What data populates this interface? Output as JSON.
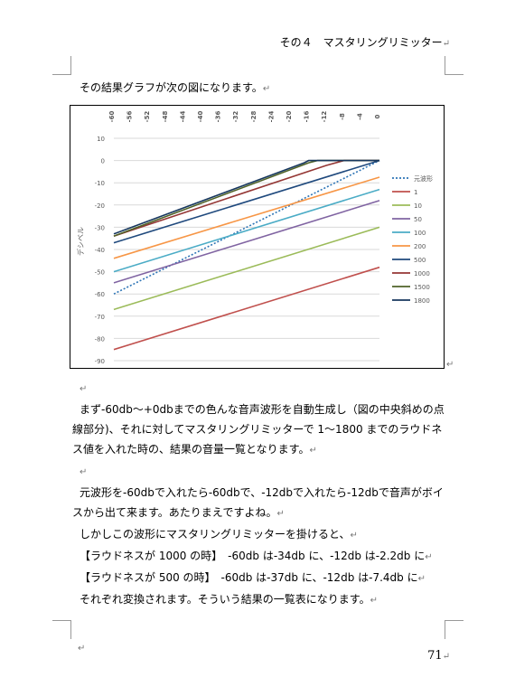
{
  "header": {
    "text": "その４　マスタリングリミッター",
    "mark": "↵"
  },
  "intro": {
    "text": "その結果グラフが次の図になります。",
    "mark": "↵"
  },
  "chart_mark": "↵",
  "chart_data": {
    "type": "line",
    "title": "",
    "ylabel": "デシベル",
    "xlabel": "",
    "x": [
      -60,
      -58,
      -56,
      -54,
      -52,
      -50,
      -48,
      -46,
      -44,
      -42,
      -40,
      -38,
      -36,
      -34,
      -32,
      -30,
      -28,
      -26,
      -24,
      -22,
      -20,
      -18,
      -16,
      -14,
      -12,
      -10,
      -8,
      -6,
      -4,
      -2,
      0
    ],
    "x_ticks": [
      "-60",
      "-56",
      "-52",
      "-48",
      "-44",
      "-40",
      "-36",
      "-32",
      "-28",
      "-24",
      "-20",
      "-16",
      "-12",
      "-8",
      "-4",
      "0"
    ],
    "xlim": [
      -60,
      0
    ],
    "y_ticks": [
      "10",
      "0",
      "-10",
      "-20",
      "-30",
      "-40",
      "-50",
      "-60",
      "-70",
      "-80",
      "-90"
    ],
    "ylim": [
      -90,
      10
    ],
    "grid": true,
    "legend_position": "right",
    "series": [
      {
        "name": "元波形",
        "color": "#2e75b6",
        "dashed": true,
        "x0": -60,
        "x1": 0,
        "y0": -60,
        "y1": 0,
        "knee_x": null
      },
      {
        "name": "1",
        "color": "#c0504d",
        "x0": -60,
        "x1": 0,
        "y0": -85,
        "y1": -48,
        "knee_x": null
      },
      {
        "name": "10",
        "color": "#9bbb59",
        "x0": -60,
        "x1": 0,
        "y0": -67,
        "y1": -30,
        "knee_x": null
      },
      {
        "name": "50",
        "color": "#8064a2",
        "x0": -60,
        "x1": 0,
        "y0": -55,
        "y1": -18,
        "knee_x": null
      },
      {
        "name": "100",
        "color": "#4bacc6",
        "x0": -60,
        "x1": 0,
        "y0": -50,
        "y1": -13,
        "knee_x": null
      },
      {
        "name": "200",
        "color": "#f79646",
        "x0": -60,
        "x1": 0,
        "y0": -44,
        "y1": -7.5,
        "knee_x": null
      },
      {
        "name": "500",
        "color": "#1f497d",
        "x0": -60,
        "x1": 0,
        "y0": -37,
        "y1": 0,
        "knee_x": null
      },
      {
        "name": "1000",
        "color": "#943634",
        "x0": -60,
        "x1": -12,
        "y0": -34,
        "y1": -2.2,
        "knee_x": -8
      },
      {
        "name": "1500",
        "color": "#4f6228",
        "x0": -60,
        "x1": -16,
        "y0": -34,
        "y1": -1,
        "knee_x": -14
      },
      {
        "name": "1800",
        "color": "#17375e",
        "x0": -60,
        "x1": -17,
        "y0": -33,
        "y1": -1,
        "knee_x": -16
      }
    ]
  },
  "body": {
    "p1_line1": "まず-60db～+0dbまでの色んな音声波形を自動生成し（図の中央斜めの点",
    "p1_line2": "線部分)、それに対してマスタリングリミッターで 1～1800 までのラウドネ",
    "p1_line3": "ス値を入れた時の、結果の音量一覧となります。",
    "blank1": "",
    "p2_line1": "元波形を-60dbで入れたら-60dbで、-12dbで入れたら-12dbで音声がボイ",
    "p2_line2": "スから出て来ます。あたりまえですよね。",
    "p3": "しかしこの波形にマスタリングリミッターを掛けると、",
    "p4": "【ラウドネスが 1000 の時】　-60db は-34db に、-12db は-2.2db に",
    "p5": "【ラウドネスが 500 の時】　-60db は-37db に、-12db は-7.4db に",
    "p6": "それぞれ変換されます。そういう結果の一覧表になります。"
  },
  "footer": {
    "page_number": "71",
    "mark": "↵"
  }
}
